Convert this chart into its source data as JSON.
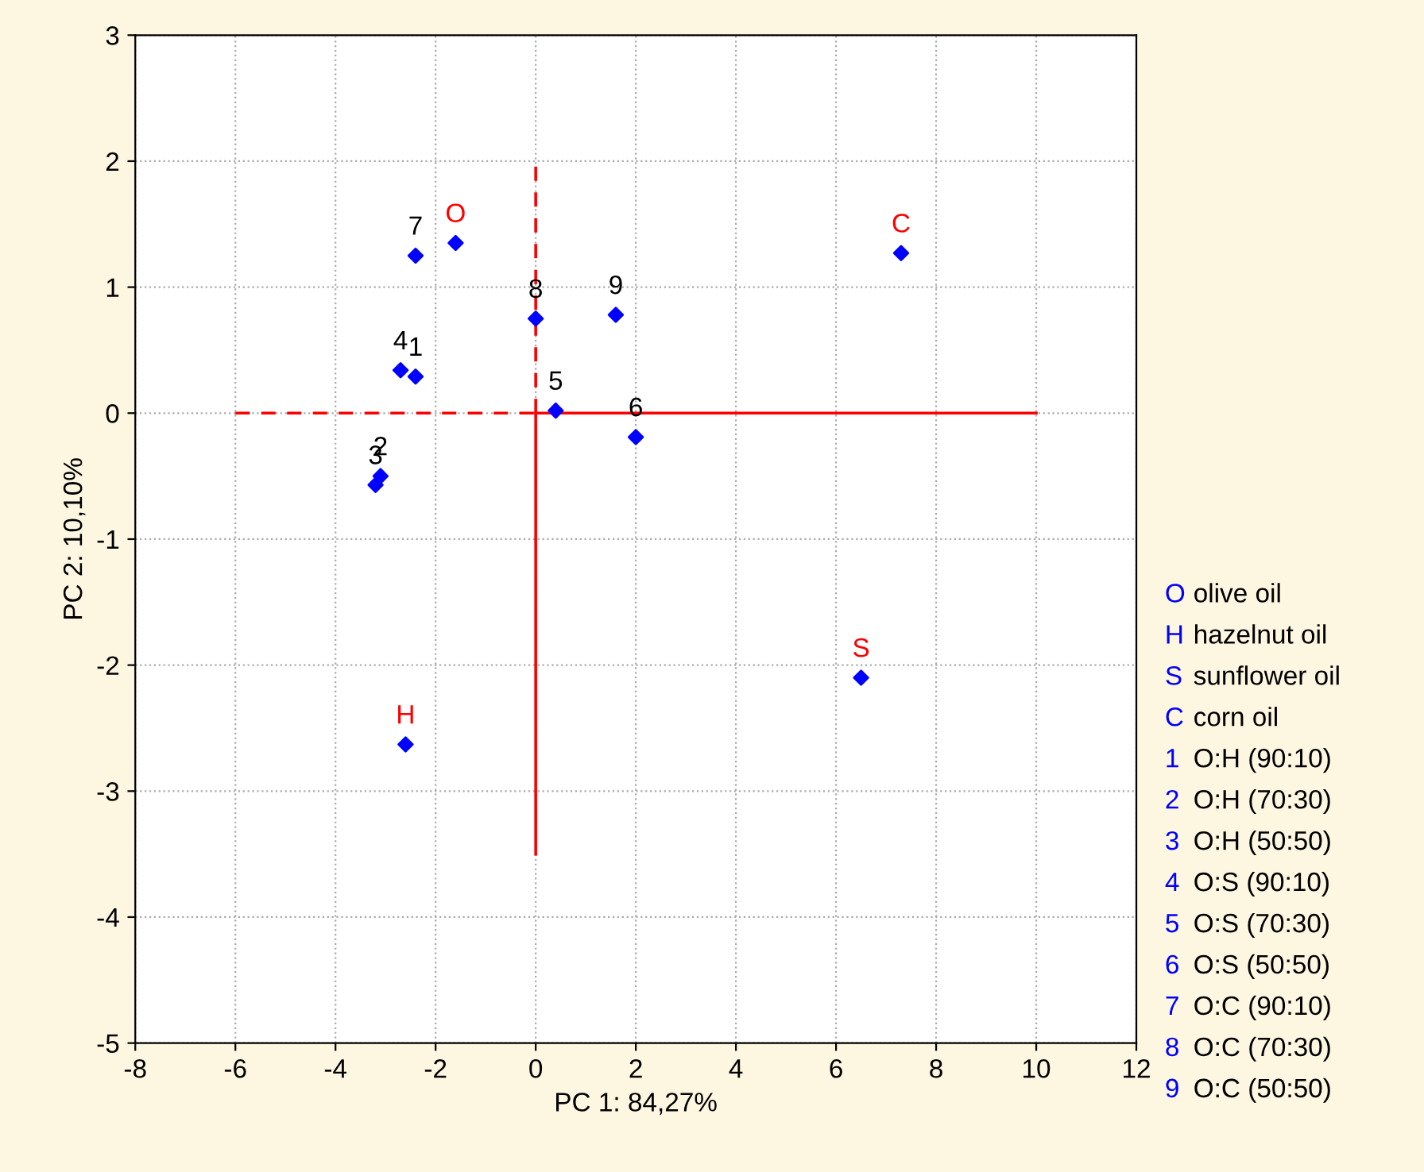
{
  "chart_data": {
    "type": "scatter",
    "xlabel": "PC 1: 84,27%",
    "ylabel": "PC 2: 10,10%",
    "xlim": [
      -8,
      12
    ],
    "xticks": [
      -8,
      -6,
      -4,
      -2,
      0,
      2,
      4,
      6,
      8,
      10,
      12
    ],
    "ylim": [
      -5,
      3
    ],
    "yticks": [
      -5,
      -4,
      -3,
      -2,
      -1,
      0,
      1,
      2,
      3
    ],
    "grid": true,
    "series": [
      {
        "type": "line",
        "color": "#ff0000",
        "line_style": "dashed",
        "marker": "none",
        "x": [
          -6,
          0
        ],
        "values": [
          0,
          0
        ]
      },
      {
        "type": "line",
        "color": "#ff0000",
        "line_style": "solid",
        "marker": "none",
        "x": [
          0,
          10
        ],
        "values": [
          0,
          0
        ]
      },
      {
        "type": "line",
        "color": "#ff0000",
        "line_style": "dashed",
        "marker": "none",
        "x": [
          0,
          0
        ],
        "values": [
          0,
          2
        ]
      },
      {
        "type": "line",
        "color": "#ff0000",
        "line_style": "solid",
        "marker": "none",
        "x": [
          0,
          0
        ],
        "values": [
          0,
          -3.5
        ]
      },
      {
        "color": "#0000ff",
        "marker": "diamond",
        "x": [
          -1.6,
          -2.6,
          6.5,
          7.3,
          -2.4,
          -3.1,
          -3.2,
          -2.7,
          0.4,
          2.0,
          -2.4,
          0.0,
          1.6
        ],
        "values": [
          1.35,
          -2.63,
          -2.1,
          1.27,
          0.29,
          -0.5,
          -0.57,
          0.34,
          0.02,
          -0.19,
          1.25,
          0.75,
          0.78
        ]
      }
    ],
    "annotations": [
      {
        "text": "O",
        "x": -1.6,
        "y": 1.35
      },
      {
        "text": "H",
        "x": -2.6,
        "y": -2.63
      },
      {
        "text": "S",
        "x": 6.5,
        "y": -2.1
      },
      {
        "text": "C",
        "x": 7.3,
        "y": 1.27
      },
      {
        "text": "1",
        "x": -2.4,
        "y": 0.29
      },
      {
        "text": "2",
        "x": -3.1,
        "y": -0.5
      },
      {
        "text": "3",
        "x": -3.2,
        "y": -0.57
      },
      {
        "text": "4",
        "x": -2.7,
        "y": 0.34
      },
      {
        "text": "5",
        "x": 0.4,
        "y": 0.02
      },
      {
        "text": "6",
        "x": 2.0,
        "y": -0.19
      },
      {
        "text": "7",
        "x": -2.4,
        "y": 1.25
      },
      {
        "text": "8",
        "x": 0.0,
        "y": 0.75
      },
      {
        "text": "9",
        "x": 1.6,
        "y": 0.78
      },
      "O olive oil",
      "H hazelnut oil",
      "S sunflower oil",
      "C corn oil",
      "1 O:H (90:10)",
      "2 O:H (70:30)",
      "3 O:H (50:50)",
      "4 O:S (90:10)",
      "5 O:S (70:30)",
      "6 O:S (50:50)",
      "7 O:C (90:10)",
      "8 O:C (70:30)",
      "9 O:C (50:50)"
    ]
  }
}
